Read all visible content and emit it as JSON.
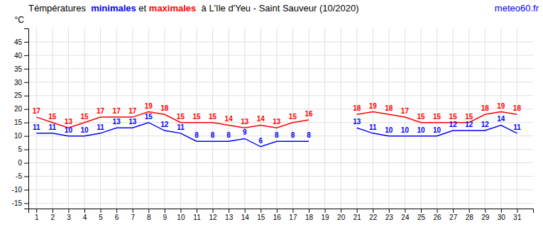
{
  "chart_data": {
    "type": "line",
    "title": "Témpératures  minimales et maximales  à L'Ile d'Yeu - Saint Sauveur (10/2020)",
    "ylabel": "°C",
    "annotations": [
      {
        "text": "meteo60.fr",
        "color": "blue"
      }
    ],
    "x": [
      1,
      2,
      3,
      4,
      5,
      6,
      7,
      8,
      9,
      10,
      11,
      12,
      13,
      14,
      15,
      16,
      17,
      18,
      19,
      20,
      21,
      22,
      23,
      24,
      25,
      26,
      27,
      28,
      29,
      30,
      31
    ],
    "series": [
      {
        "name": "minimales",
        "color": "#0000ff",
        "values": [
          11,
          11,
          10,
          10,
          11,
          13,
          13,
          15,
          12,
          11,
          8,
          8,
          8,
          9,
          6,
          8,
          8,
          8,
          null,
          null,
          13,
          11,
          10,
          10,
          10,
          10,
          12,
          12,
          12,
          14,
          11
        ]
      },
      {
        "name": "maximales",
        "color": "#ff0000",
        "values": [
          17,
          15,
          13,
          15,
          17,
          17,
          17,
          19,
          18,
          15,
          15,
          15,
          14,
          13,
          14,
          13,
          15,
          16,
          null,
          null,
          18,
          19,
          18,
          17,
          15,
          15,
          15,
          15,
          18,
          19,
          18
        ]
      }
    ],
    "xlim": [
      0.5,
      32
    ],
    "xticks": [
      1,
      2,
      3,
      4,
      5,
      6,
      7,
      8,
      9,
      10,
      11,
      12,
      13,
      14,
      15,
      16,
      17,
      18,
      19,
      20,
      21,
      22,
      23,
      24,
      25,
      26,
      27,
      28,
      29,
      30,
      31
    ],
    "ylim": [
      -17,
      50
    ],
    "yticks": [
      -15,
      -10,
      -5,
      0,
      5,
      10,
      15,
      20,
      25,
      30,
      35,
      40,
      45
    ],
    "grid": true,
    "data_labels": true
  }
}
